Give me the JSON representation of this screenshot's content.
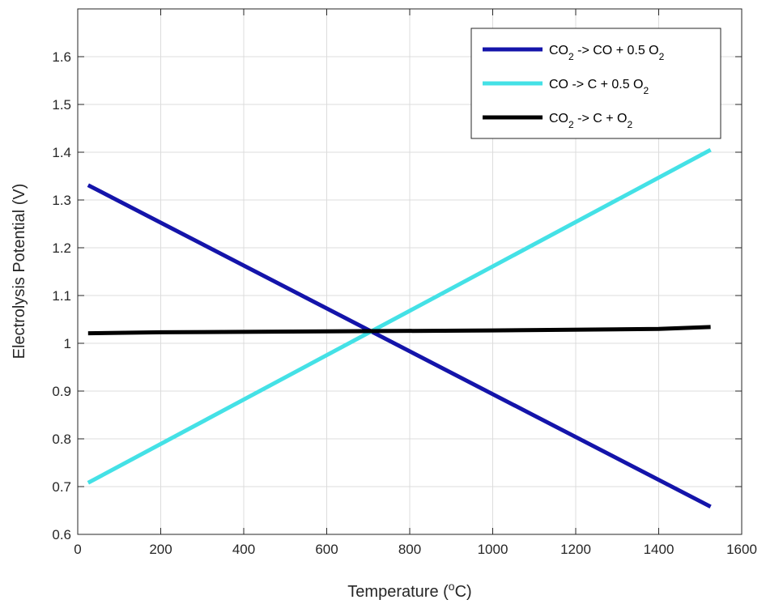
{
  "chart_data": {
    "type": "line",
    "title": "",
    "xlabel": {
      "prefix": "Temperature (",
      "sup": "o",
      "suffix": "C)"
    },
    "ylabel": "Electrolysis Potential (V)",
    "xlim": [
      0,
      1600
    ],
    "ylim": [
      0.6,
      1.7
    ],
    "xticks": [
      0,
      200,
      400,
      600,
      800,
      1000,
      1200,
      1400,
      1600
    ],
    "yticks": [
      0.6,
      0.7,
      0.8,
      0.9,
      1.0,
      1.1,
      1.2,
      1.3,
      1.4,
      1.5,
      1.6
    ],
    "ytick_labels": [
      "0.6",
      "0.7",
      "0.8",
      "0.9",
      "1",
      "1.1",
      "1.2",
      "1.3",
      "1.4",
      "1.5",
      "1.6"
    ],
    "grid": true,
    "legend_position": "top-right",
    "series": [
      {
        "name": [
          [
            "CO",
            ""
          ],
          [
            "2",
            "sub"
          ],
          [
            " -> CO + 0.5 O",
            ""
          ],
          [
            "2",
            "sub"
          ]
        ],
        "color": "#1414aa",
        "x": [
          25,
          1525
        ],
        "y": [
          1.331,
          0.658
        ]
      },
      {
        "name": [
          [
            "CO -> C + 0.5 O",
            ""
          ],
          [
            "2",
            "sub"
          ]
        ],
        "color": "#44e1e6",
        "x": [
          25,
          1525
        ],
        "y": [
          0.708,
          1.405
        ]
      },
      {
        "name": [
          [
            "CO",
            ""
          ],
          [
            "2",
            "sub"
          ],
          [
            " -> C + O",
            ""
          ],
          [
            "2",
            "sub"
          ]
        ],
        "color": "#000000",
        "x": [
          25,
          200,
          600,
          1000,
          1400,
          1525
        ],
        "y": [
          1.021,
          1.023,
          1.025,
          1.027,
          1.03,
          1.034
        ]
      }
    ]
  }
}
